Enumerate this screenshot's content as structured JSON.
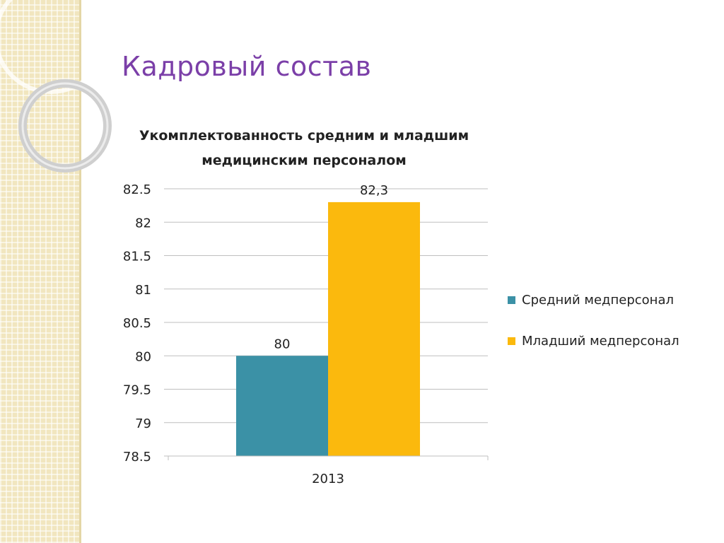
{
  "slide": {
    "title": "Кадровый состав"
  },
  "colors": {
    "title": "#7b3fa8",
    "side_band": "#f1e6bf",
    "gridline": "#bfbfbf",
    "text": "#222222"
  },
  "chart_data": {
    "type": "bar",
    "title": "Укомплектованность средним  и младшим медицинским персоналом",
    "title_lines": [
      "Укомплектованность средним  и младшим",
      "медицинским персоналом"
    ],
    "categories": [
      "2013"
    ],
    "series": [
      {
        "name": "Средний медперсонал",
        "color": "#3b91a6",
        "values": [
          80
        ],
        "data_labels": [
          "80"
        ]
      },
      {
        "name": "Младший медперсонал",
        "color": "#fbb90d",
        "values": [
          82.3
        ],
        "data_labels": [
          "82,3"
        ]
      }
    ],
    "ylim": [
      78.5,
      82.5
    ],
    "y_ticks": [
      "78.5",
      "79",
      "79.5",
      "80",
      "80.5",
      "81",
      "81.5",
      "82",
      "82.5"
    ],
    "xlabel": "",
    "ylabel": "",
    "grid": true,
    "legend": "right"
  }
}
